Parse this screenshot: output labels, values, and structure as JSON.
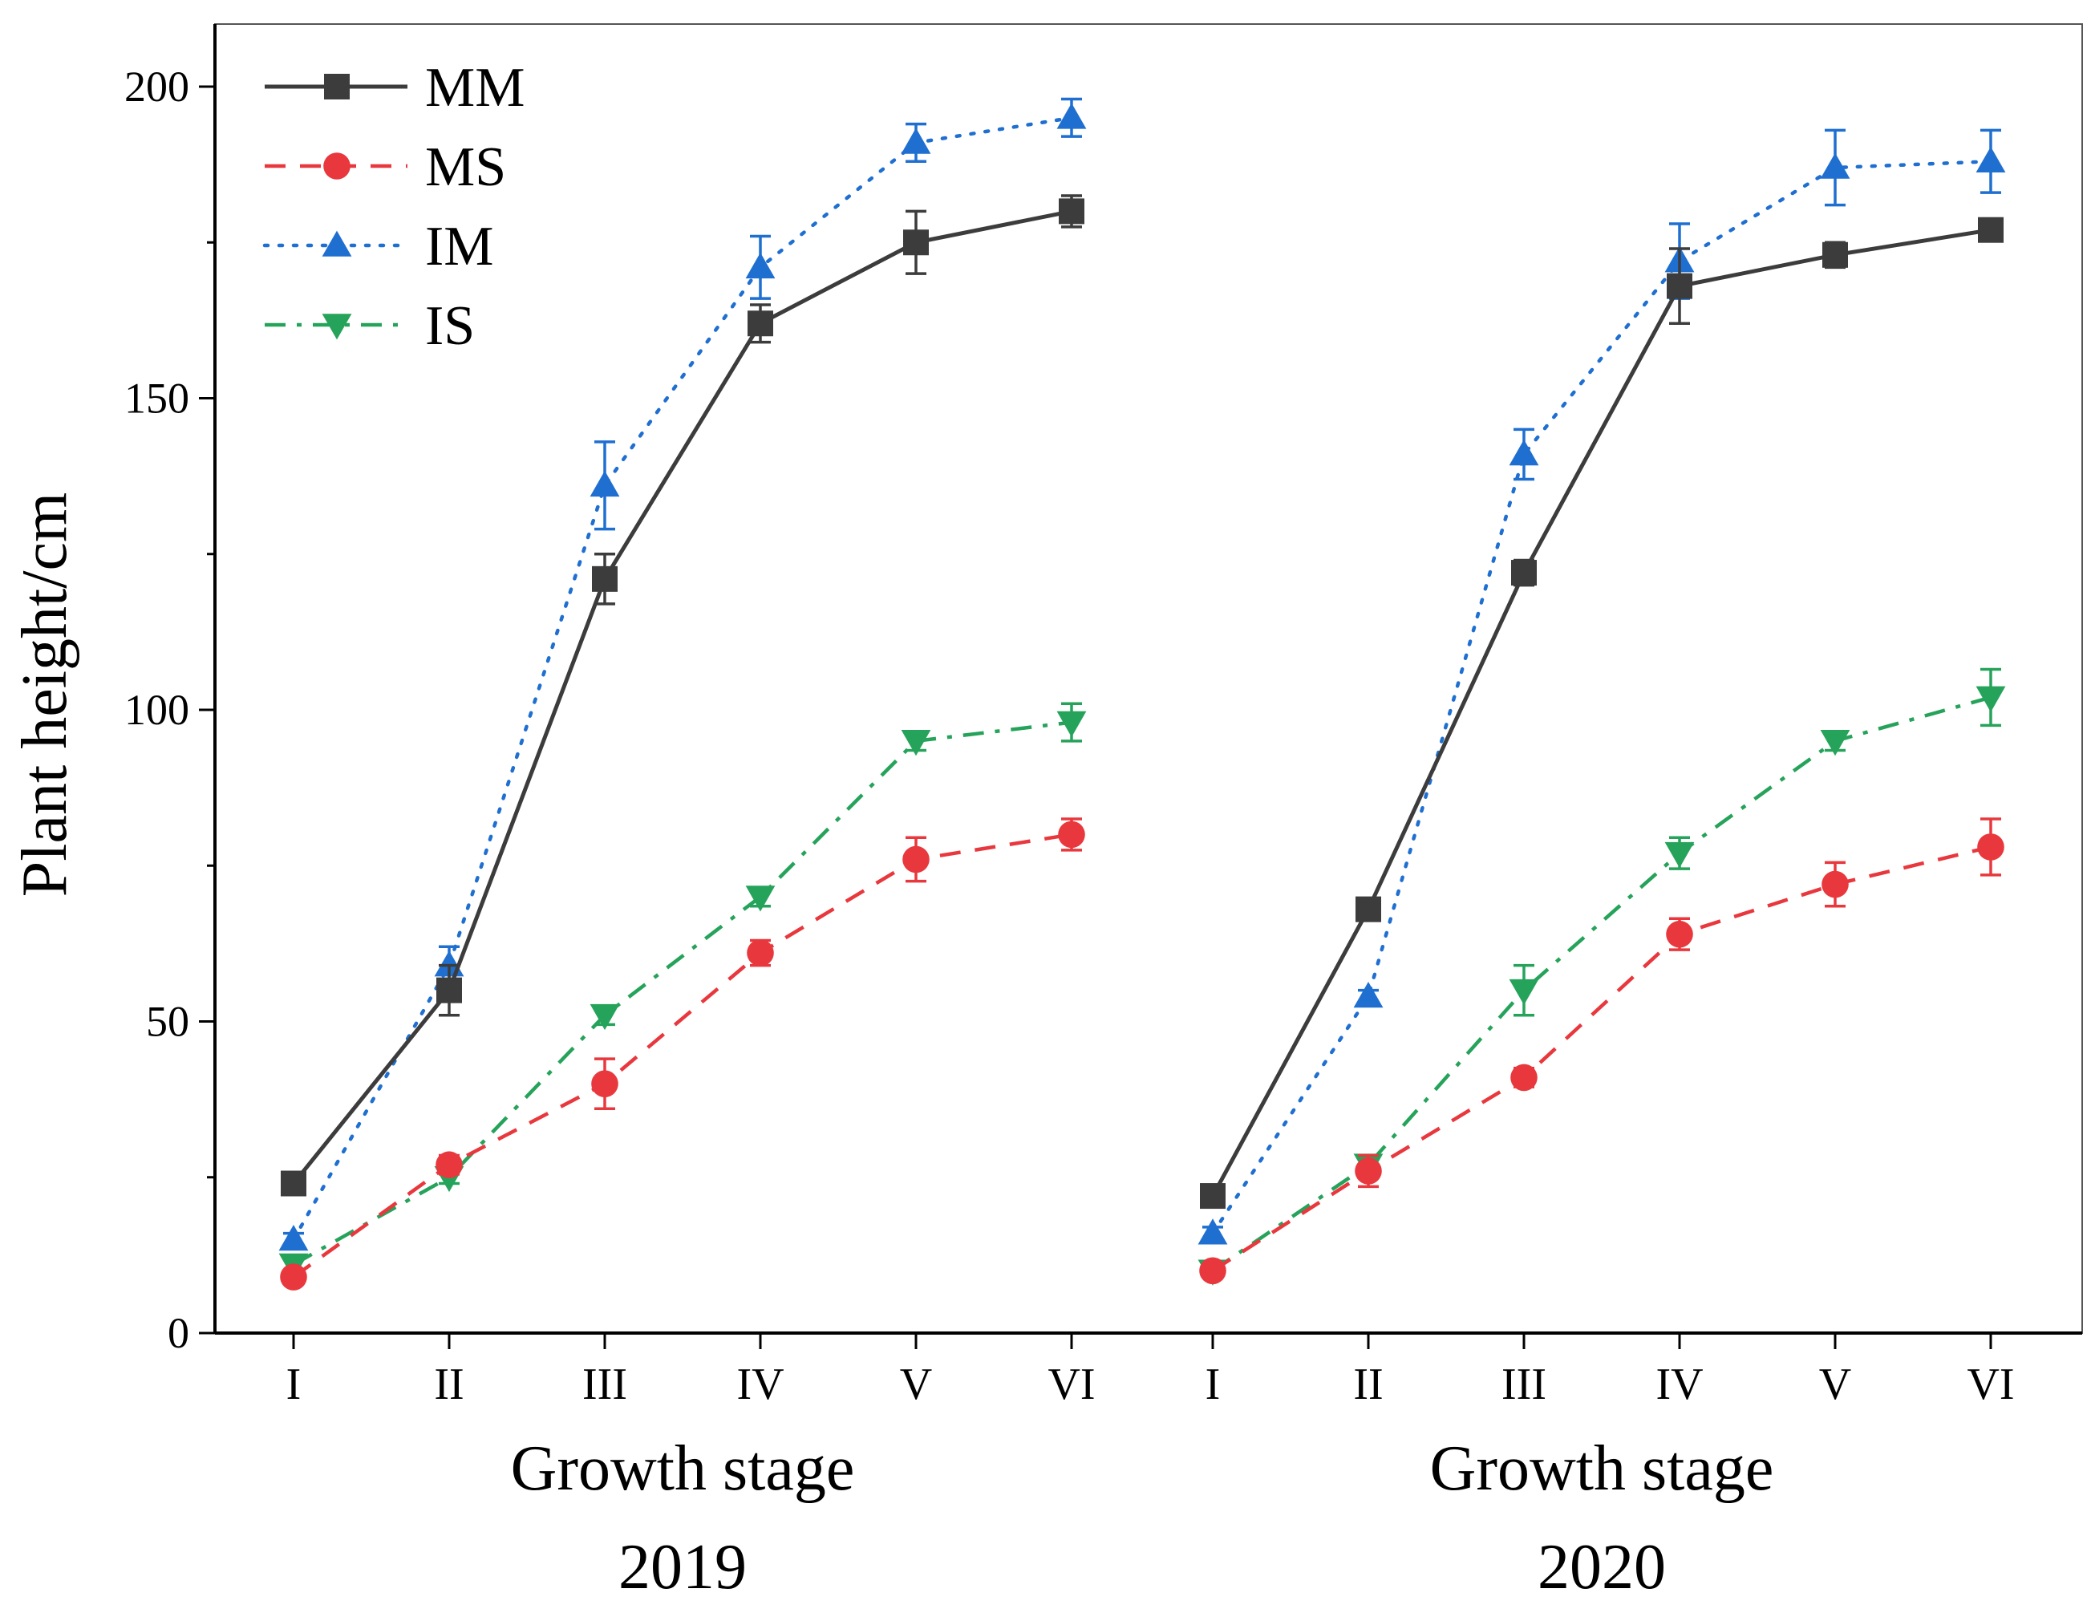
{
  "chart_data": {
    "type": "line",
    "title": "",
    "ylabel": "Plant height/cm",
    "ylim": [
      0,
      200
    ],
    "yticks": [
      0,
      50,
      100,
      150,
      200
    ],
    "legend_position": "top-left",
    "grid": false,
    "groups": [
      {
        "year": "2019",
        "xlabel": "Growth stage",
        "categories": [
          "I",
          "II",
          "III",
          "IV",
          "V",
          "VI"
        ],
        "series": [
          {
            "name": "MM",
            "color": "#3c3c3c",
            "marker": "square",
            "dash": "solid",
            "values": [
              24,
              55,
              121,
              162,
              175,
              180
            ],
            "errors": [
              1.5,
              4,
              4,
              3,
              5,
              2.5
            ]
          },
          {
            "name": "MS",
            "color": "#e8383d",
            "marker": "circle",
            "dash": "dashed",
            "values": [
              9,
              27,
              40,
              61,
              76,
              80
            ],
            "errors": [
              1,
              1.5,
              4,
              2,
              3.5,
              2.5
            ]
          },
          {
            "name": "IM",
            "color": "#1f6fd1",
            "marker": "triangle-up",
            "dash": "dotted",
            "values": [
              15,
              59,
              136,
              171,
              191,
              195
            ],
            "errors": [
              1,
              3,
              7,
              5,
              3,
              3
            ]
          },
          {
            "name": "IS",
            "color": "#26a35a",
            "marker": "triangle-down",
            "dash": "dashdot",
            "values": [
              11,
              25,
              51,
              70,
              95,
              98
            ],
            "errors": [
              1,
              1,
              1.5,
              1.5,
              1.5,
              3
            ]
          }
        ]
      },
      {
        "year": "2020",
        "xlabel": "Growth stage",
        "categories": [
          "I",
          "II",
          "III",
          "IV",
          "V",
          "VI"
        ],
        "series": [
          {
            "name": "MM",
            "color": "#3c3c3c",
            "marker": "square",
            "dash": "solid",
            "values": [
              22,
              68,
              122,
              168,
              173,
              177
            ],
            "errors": [
              1,
              1.5,
              2,
              6,
              2,
              1
            ]
          },
          {
            "name": "MS",
            "color": "#e8383d",
            "marker": "circle",
            "dash": "dashed",
            "values": [
              10,
              26,
              41,
              64,
              72,
              78
            ],
            "errors": [
              1,
              2.5,
              1.5,
              2.5,
              3.5,
              4.5
            ]
          },
          {
            "name": "IM",
            "color": "#1f6fd1",
            "marker": "triangle-up",
            "dash": "dotted",
            "values": [
              16,
              54,
              141,
              172,
              187,
              188
            ],
            "errors": [
              1,
              1,
              4,
              6,
              6,
              5
            ]
          },
          {
            "name": "IS",
            "color": "#26a35a",
            "marker": "triangle-down",
            "dash": "dashdot",
            "values": [
              10,
              27,
              55,
              77,
              95,
              102
            ],
            "errors": [
              1,
              1,
              4,
              2.5,
              1.5,
              4.5
            ]
          }
        ]
      }
    ]
  }
}
